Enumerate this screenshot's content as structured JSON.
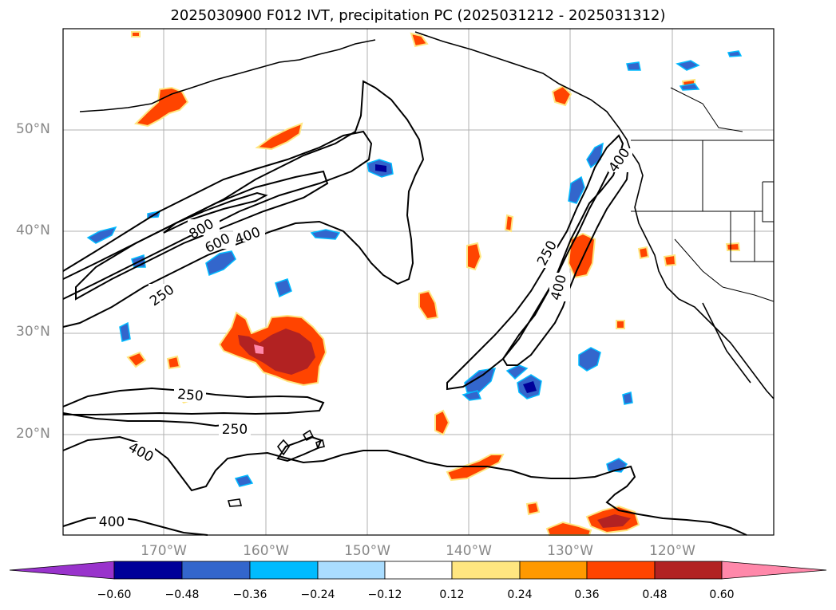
{
  "title": "2025030900 F012 IVT, precipitation PC (2025031212 - 2025031312)",
  "map": {
    "lat_labels": [
      "50°N",
      "40°N",
      "30°N",
      "20°N"
    ],
    "lon_labels": [
      "170°W",
      "160°W",
      "150°W",
      "140°W",
      "130°W",
      "120°W"
    ],
    "contour_labels": [
      "800",
      "600",
      "400",
      "250",
      "250",
      "250",
      "400",
      "400",
      "250",
      "400",
      "400"
    ]
  },
  "colorbar": {
    "ticks": [
      "−0.60",
      "−0.48",
      "−0.36",
      "−0.24",
      "−0.12",
      "0.12",
      "0.24",
      "0.36",
      "0.48",
      "0.60"
    ],
    "colors": [
      "#9933cc",
      "#000099",
      "#3366cc",
      "#00bbff",
      "#aaddff",
      "#ffffff",
      "#ffe680",
      "#ff9900",
      "#ff4400",
      "#b22222",
      "#ff88aa",
      "#ff88aa"
    ]
  },
  "colors": {
    "pos_fill_light": "#ffe680",
    "pos_fill_orange": "#ff9900",
    "pos_fill_red": "#ff4400",
    "pos_fill_dark": "#b22222",
    "pos_fill_pink": "#ff88aa",
    "neg_fill_light": "#aaddff",
    "neg_fill_cyan": "#00bbff",
    "neg_fill_blue": "#3366cc",
    "neg_fill_navy": "#000099"
  }
}
